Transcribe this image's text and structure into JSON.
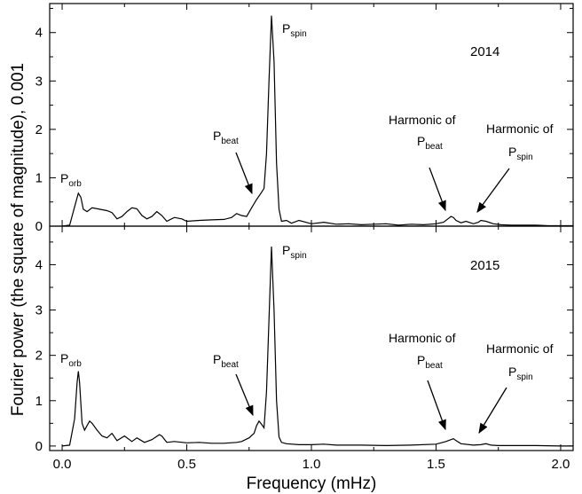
{
  "chart_data": {
    "type": "line",
    "xlabel": "Frequency (mHz)",
    "ylabel": "Fourier power (the square of magnitude), 0.001",
    "xlim": [
      -0.05,
      2.05
    ],
    "x_ticks": [
      0.0,
      0.5,
      1.0,
      1.5,
      2.0
    ],
    "x_tick_labels": [
      "0.0",
      "0.5",
      "1.0",
      "1.5",
      "2.0"
    ],
    "panels": [
      {
        "label": "2014",
        "ylim": [
          0,
          4.6
        ],
        "y_ticks": [
          0,
          1,
          2,
          3,
          4
        ],
        "y_tick_labels": [
          "0",
          "1",
          "2",
          "3",
          "4"
        ],
        "series": [
          {
            "x": [
              0.0,
              0.03,
              0.05,
              0.065,
              0.075,
              0.085,
              0.1,
              0.12,
              0.15,
              0.18,
              0.2,
              0.22,
              0.24,
              0.26,
              0.28,
              0.3,
              0.32,
              0.34,
              0.36,
              0.38,
              0.4,
              0.42,
              0.45,
              0.48,
              0.5,
              0.55,
              0.6,
              0.65,
              0.68,
              0.7,
              0.72,
              0.74,
              0.76,
              0.78,
              0.8,
              0.81,
              0.82,
              0.83,
              0.84,
              0.85,
              0.86,
              0.87,
              0.88,
              0.9,
              0.92,
              0.95,
              1.0,
              1.05,
              1.1,
              1.15,
              1.2,
              1.25,
              1.3,
              1.35,
              1.4,
              1.45,
              1.5,
              1.53,
              1.55,
              1.56,
              1.57,
              1.58,
              1.6,
              1.62,
              1.65,
              1.67,
              1.68,
              1.7,
              1.73,
              1.76,
              1.8,
              1.85,
              1.9,
              1.95,
              2.0,
              2.05
            ],
            "y": [
              0.0,
              0.02,
              0.4,
              0.68,
              0.6,
              0.35,
              0.3,
              0.38,
              0.35,
              0.32,
              0.28,
              0.15,
              0.2,
              0.3,
              0.38,
              0.36,
              0.22,
              0.15,
              0.2,
              0.3,
              0.22,
              0.1,
              0.18,
              0.15,
              0.1,
              0.12,
              0.13,
              0.14,
              0.18,
              0.26,
              0.22,
              0.2,
              0.38,
              0.55,
              0.7,
              0.78,
              1.5,
              3.0,
              4.35,
              3.4,
              1.3,
              0.35,
              0.1,
              0.12,
              0.06,
              0.12,
              0.05,
              0.08,
              0.04,
              0.05,
              0.03,
              0.04,
              0.05,
              0.02,
              0.04,
              0.03,
              0.05,
              0.08,
              0.16,
              0.2,
              0.18,
              0.12,
              0.07,
              0.1,
              0.05,
              0.08,
              0.12,
              0.1,
              0.05,
              0.03,
              0.02,
              0.02,
              0.02,
              0.01,
              0.01,
              0.01
            ]
          }
        ],
        "annotations": [
          {
            "main": "P",
            "sub": "orb"
          },
          {
            "main": "P",
            "sub": "beat"
          },
          {
            "main": "P",
            "sub": "spin"
          },
          {
            "main": "Harmonic of",
            "main2": "P",
            "sub": "beat"
          },
          {
            "main": "Harmonic of",
            "main2": "P",
            "sub": "spin"
          }
        ]
      },
      {
        "label": "2015",
        "ylim": [
          -0.1,
          4.85
        ],
        "y_ticks": [
          0,
          1,
          2,
          3,
          4
        ],
        "y_tick_labels": [
          "0",
          "1",
          "2",
          "3",
          "4"
        ],
        "series": [
          {
            "x": [
              0.0,
              0.03,
              0.05,
              0.06,
              0.065,
              0.07,
              0.08,
              0.09,
              0.1,
              0.11,
              0.12,
              0.14,
              0.16,
              0.18,
              0.2,
              0.22,
              0.25,
              0.28,
              0.3,
              0.33,
              0.36,
              0.39,
              0.4,
              0.42,
              0.45,
              0.5,
              0.55,
              0.6,
              0.65,
              0.7,
              0.72,
              0.75,
              0.77,
              0.78,
              0.79,
              0.8,
              0.81,
              0.82,
              0.83,
              0.84,
              0.85,
              0.86,
              0.87,
              0.88,
              0.9,
              0.95,
              1.0,
              1.05,
              1.1,
              1.2,
              1.3,
              1.4,
              1.5,
              1.54,
              1.56,
              1.57,
              1.58,
              1.6,
              1.65,
              1.68,
              1.7,
              1.72,
              1.75,
              1.8,
              1.9,
              2.0,
              2.05
            ],
            "y": [
              0.0,
              0.02,
              0.6,
              1.4,
              1.65,
              1.4,
              0.5,
              0.35,
              0.45,
              0.55,
              0.5,
              0.35,
              0.22,
              0.18,
              0.28,
              0.12,
              0.22,
              0.1,
              0.18,
              0.08,
              0.14,
              0.25,
              0.22,
              0.08,
              0.1,
              0.07,
              0.08,
              0.06,
              0.06,
              0.08,
              0.1,
              0.18,
              0.28,
              0.45,
              0.55,
              0.48,
              0.4,
              1.2,
              2.8,
              4.4,
              3.0,
              1.0,
              0.2,
              0.08,
              0.05,
              0.03,
              0.03,
              0.04,
              0.02,
              0.02,
              0.01,
              0.02,
              0.04,
              0.1,
              0.14,
              0.16,
              0.12,
              0.05,
              0.02,
              0.03,
              0.05,
              0.02,
              0.01,
              0.01,
              0.01,
              0.0,
              0.0
            ]
          }
        ],
        "annotations": [
          {
            "main": "P",
            "sub": "orb"
          },
          {
            "main": "P",
            "sub": "beat"
          },
          {
            "main": "P",
            "sub": "spin"
          },
          {
            "main": "Harmonic of",
            "main2": "P",
            "sub": "beat"
          },
          {
            "main": "Harmonic of",
            "main2": "P",
            "sub": "spin"
          }
        ]
      }
    ]
  }
}
